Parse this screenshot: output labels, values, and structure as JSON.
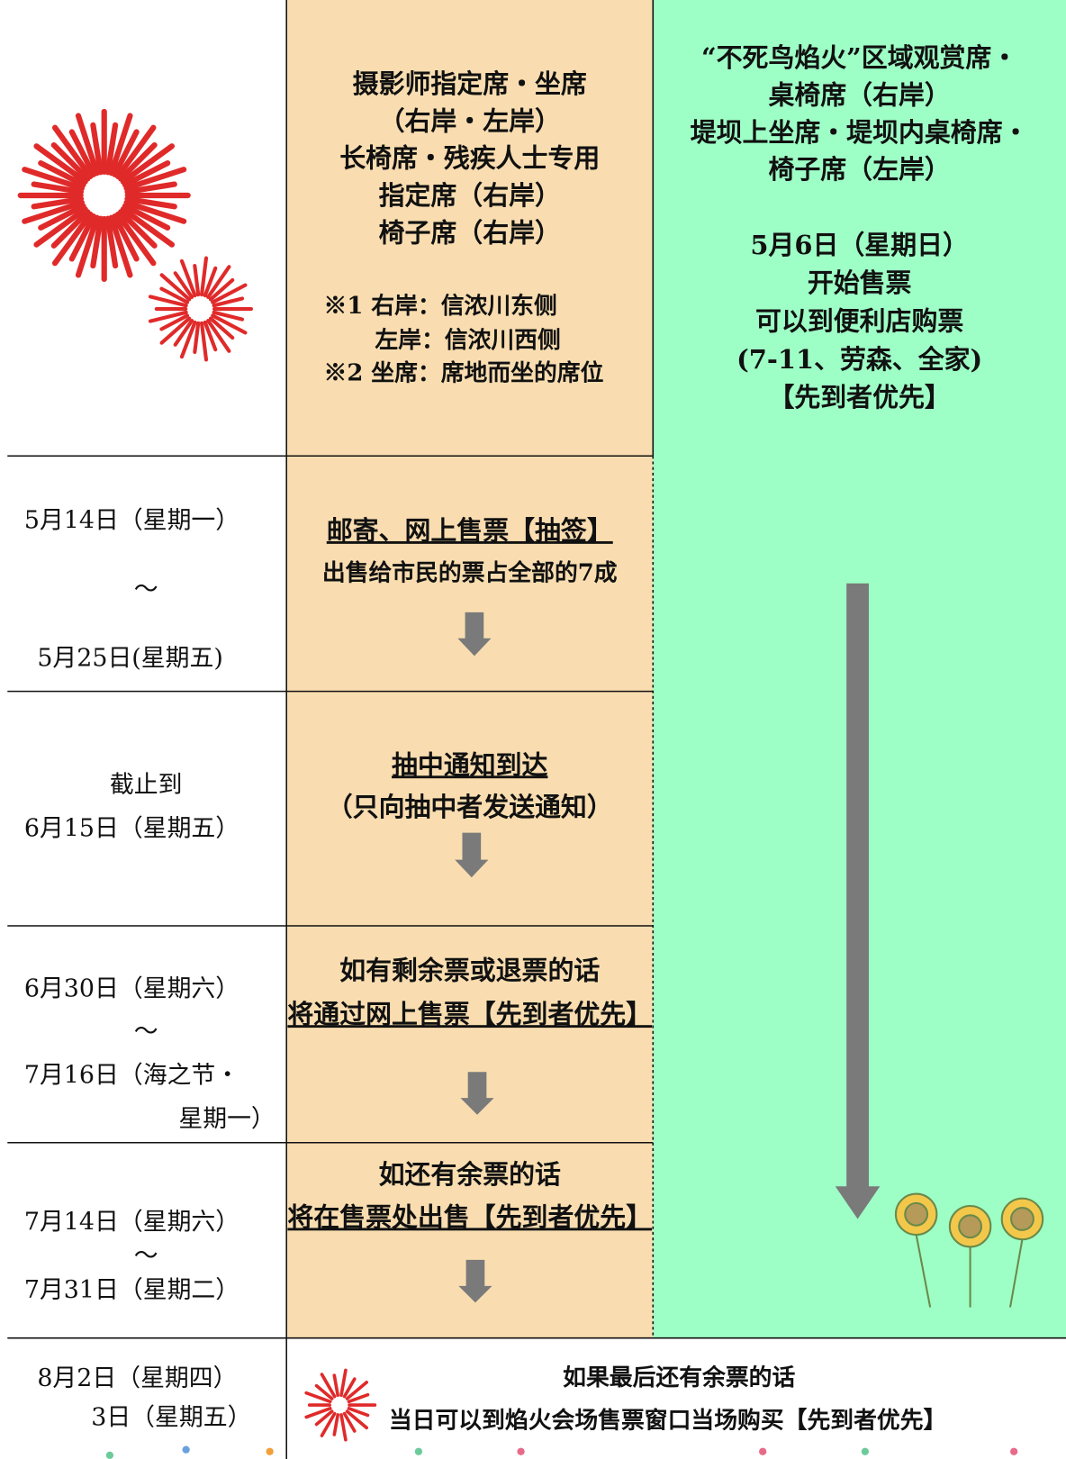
{
  "header": {
    "seats": [
      "摄影师指定席・坐席",
      "（右岸・左岸）",
      "长椅席・残疾人士专用",
      "指定席（右岸）",
      "椅子席（右岸）"
    ],
    "notes": [
      "※1 右岸：信浓川东侧",
      "左岸：信浓川西侧",
      "※2 坐席：席地而坐的席位"
    ],
    "phoenix": [
      "“不死鸟焰火”区域观赏席・",
      "桌椅席（右岸）",
      "堤坝上坐席・堤坝内桌椅席・",
      "椅子席（左岸）",
      "5月6日（星期日）",
      "开始售票",
      "可以到便利店购票",
      "(7-11、劳森、全家)",
      "【先到者优先】"
    ]
  },
  "rows": [
    {
      "date": [
        "5月14日（星期一）",
        "～",
        "5月25日(星期五)"
      ],
      "steps": [
        "邮寄、网上售票【抽签】",
        "出售给市民的票占全部的7成"
      ]
    },
    {
      "date": [
        "截止到",
        "6月15日（星期五）"
      ],
      "steps": [
        "抽中通知到达",
        "（只向抽中者发送通知）"
      ]
    },
    {
      "date": [
        "6月30日（星期六）",
        "～",
        "7月16日（海之节・",
        "星期一）"
      ],
      "steps": [
        "如有剩余票或退票的话",
        "将通过网上售票【先到者优先】"
      ]
    },
    {
      "date": [
        "7月14日（星期六）",
        "～",
        "7月31日（星期二）"
      ],
      "steps": [
        "如还有余票的话",
        "将在售票处出售【先到者优先】"
      ]
    }
  ],
  "final": {
    "date": [
      "8月2日（星期四）",
      "3日（星期五）"
    ],
    "text": [
      "如果最后还有余票的话",
      "当日可以到焰火会场售票窗口当场购买【先到者优先】"
    ]
  }
}
